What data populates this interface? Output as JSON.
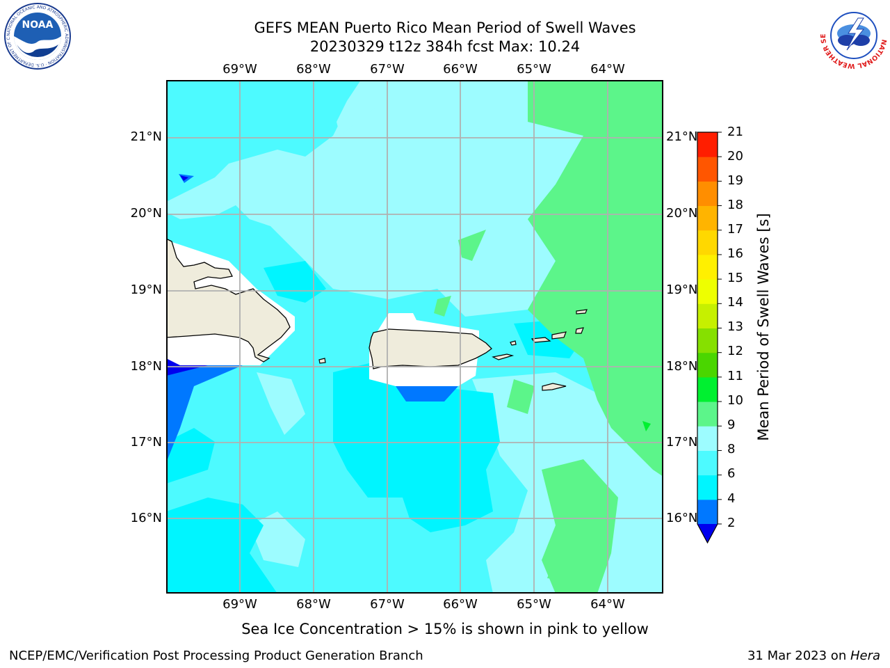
{
  "header": {
    "title_line1": "GEFS MEAN Puerto Rico Mean Period of Swell Waves",
    "title_line2": "20230329 t12z 384h fcst   Max: 10.24"
  },
  "logos": {
    "noaa_text": "NOAA",
    "noaa_ring": "NATIONAL OCEANIC AND ATMOSPHERIC ADMINISTRATION · U.S. DEPARTMENT OF COMMERCE",
    "nws_ring": "NATIONAL WEATHER SERVICE"
  },
  "axes": {
    "lon_labels": [
      "69°W",
      "68°W",
      "67°W",
      "66°W",
      "65°W",
      "64°W"
    ],
    "lat_labels": [
      "21°N",
      "20°N",
      "19°N",
      "18°N",
      "17°N",
      "16°N"
    ],
    "lon_range": [
      -70.0,
      -63.25
    ],
    "lat_range": [
      15.0,
      21.75
    ],
    "grid": true
  },
  "colorbar": {
    "label": "Mean Period of Swell Waves [s]",
    "ticks": [
      "2",
      "4",
      "6",
      "8",
      "9",
      "10",
      "11",
      "12",
      "13",
      "14",
      "15",
      "16",
      "17",
      "18",
      "19",
      "20",
      "21"
    ],
    "levels": [
      2,
      4,
      6,
      8,
      9,
      10,
      11,
      12,
      13,
      14,
      15,
      16,
      17,
      18,
      19,
      20,
      21
    ],
    "colors": [
      "#0078ff",
      "#00f5ff",
      "#4dfaff",
      "#9dfcff",
      "#5cf58a",
      "#00f030",
      "#4ad600",
      "#86e000",
      "#c6f000",
      "#eeff00",
      "#fff000",
      "#ffd800",
      "#ffb400",
      "#ff8e00",
      "#ff5600",
      "#ff1e00"
    ],
    "under_color": "#0000ee"
  },
  "map": {
    "colors": {
      "c4": "#00f5ff",
      "c6": "#4dfaff",
      "c8": "#9dfcff",
      "c9": "#5cf58a",
      "c10": "#00f030",
      "c2": "#0078ff",
      "under": "#0000ee",
      "land": "#efecdc",
      "mask": "#ffffff",
      "grid": "#b0b0b0"
    }
  },
  "footer": {
    "note": "Sea Ice Concentration > 15% is shown in pink to yellow",
    "left": "NCEP/EMC/Verification Post Processing Product Generation Branch",
    "date": "31 Mar 2023 on ",
    "host": "Hera"
  }
}
